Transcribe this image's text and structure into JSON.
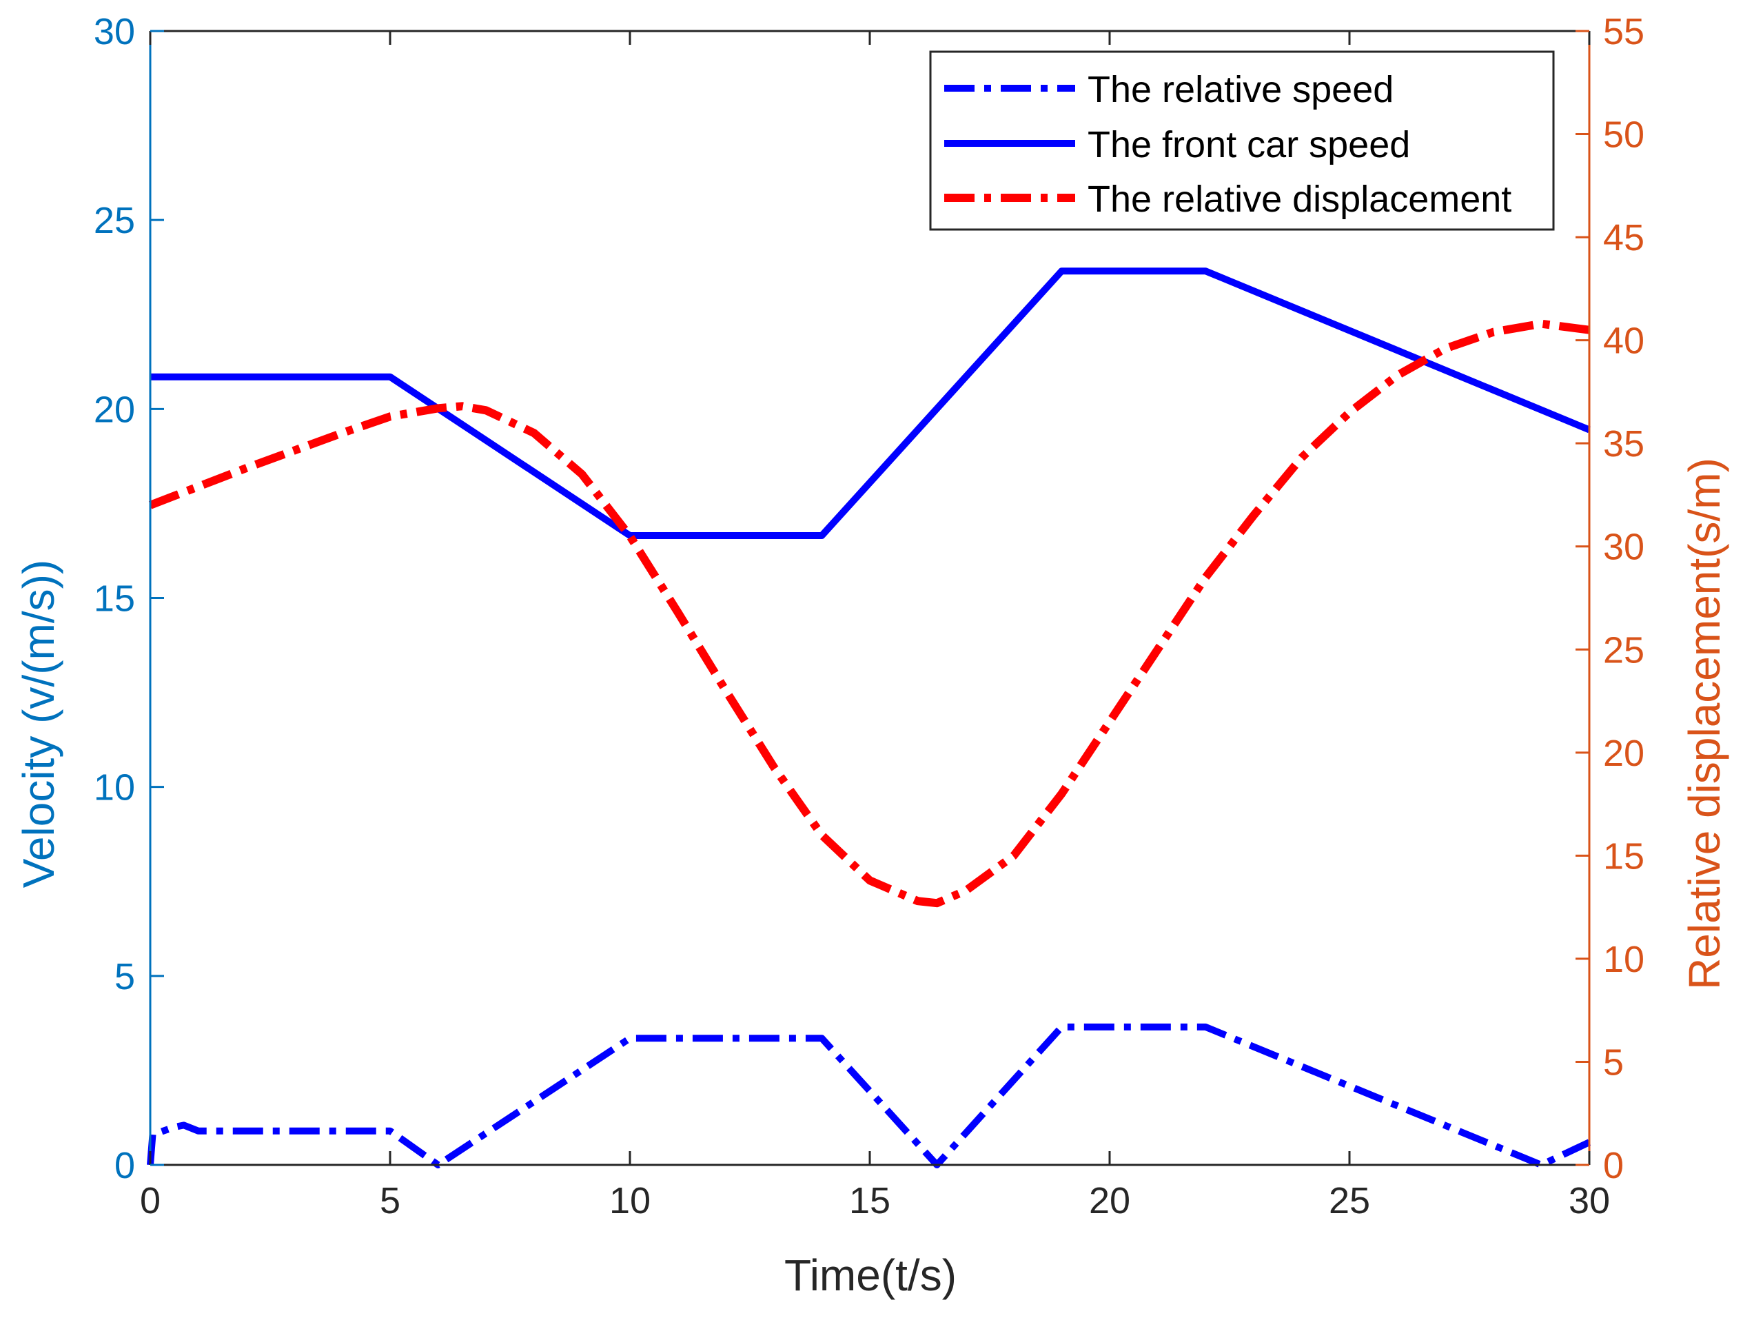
{
  "chart_data": {
    "type": "line",
    "title": "",
    "xlabel": "Time(t/s)",
    "ylabel": "Velocity (v/(m/s))",
    "y2label": "Relative displacement(s/m)",
    "xlim": [
      0,
      30
    ],
    "ylim": [
      0,
      30
    ],
    "y2lim": [
      0,
      55
    ],
    "xticks": [
      "0",
      "5",
      "10",
      "15",
      "20",
      "25",
      "30"
    ],
    "yticks": [
      "0",
      "5",
      "10",
      "15",
      "20",
      "25",
      "30"
    ],
    "y2ticks": [
      "0",
      "5",
      "10",
      "15",
      "20",
      "25",
      "30",
      "35",
      "40",
      "45",
      "50",
      "55"
    ],
    "grid": false,
    "legend_position": "top-right",
    "colors": {
      "left_axis": "#0072BD",
      "right_axis": "#D95319",
      "bottom_axis": "#262626",
      "speed": "#0000FF",
      "displacement": "#FF0000"
    },
    "series": [
      {
        "name": "The relative speed",
        "axis": "left",
        "color": "#0000FF",
        "style": "dashdot",
        "x": [
          0,
          0.05,
          0.5,
          0.7,
          1.0,
          5.0,
          6.0,
          10.0,
          14.0,
          16.4,
          19.0,
          22.0,
          29.0,
          30.0
        ],
        "y": [
          0,
          0.8,
          1.0,
          1.05,
          0.9,
          0.9,
          0,
          3.35,
          3.35,
          0,
          3.65,
          3.65,
          0,
          0.6
        ]
      },
      {
        "name": "The front car speed",
        "axis": "left",
        "color": "#0000FF",
        "style": "solid",
        "x": [
          0,
          5.0,
          10.0,
          14.0,
          19.0,
          22.0,
          30.0
        ],
        "y": [
          20.85,
          20.85,
          16.65,
          16.65,
          23.65,
          23.65,
          19.45
        ]
      },
      {
        "name": "The relative displacement",
        "axis": "right",
        "color": "#FF0000",
        "style": "dashdot",
        "x": [
          0,
          2,
          4,
          5,
          6,
          6.5,
          7,
          8,
          9,
          10,
          11,
          12,
          13,
          14,
          15,
          16,
          16.4,
          17,
          18,
          19,
          20,
          21,
          22,
          23,
          24,
          25,
          26,
          27,
          28,
          29,
          30
        ],
        "y": [
          32.0,
          33.8,
          35.5,
          36.3,
          36.7,
          36.8,
          36.6,
          35.5,
          33.5,
          30.5,
          26.8,
          23.0,
          19.3,
          16.0,
          13.8,
          12.8,
          12.7,
          13.3,
          15.0,
          18.0,
          21.5,
          25.0,
          28.5,
          31.5,
          34.3,
          36.5,
          38.3,
          39.6,
          40.4,
          40.8,
          40.5
        ]
      }
    ]
  }
}
